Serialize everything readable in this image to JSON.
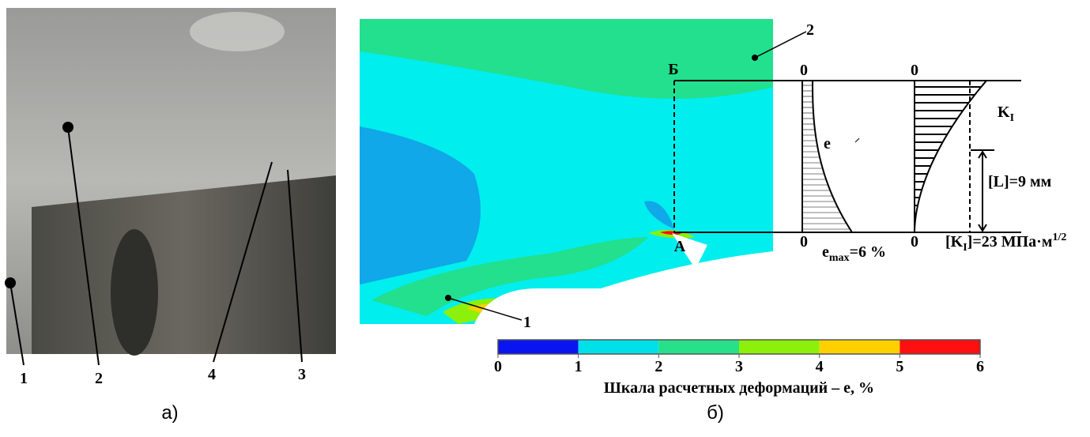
{
  "panel_a": {
    "labels": [
      "1",
      "2",
      "4",
      "3"
    ],
    "caption": "а)"
  },
  "panel_b": {
    "caption": "б)",
    "point_b": "Б",
    "point_a": "A",
    "zone_labels": [
      "2",
      "1"
    ],
    "diagram_e": {
      "top_zero": "0",
      "bottom_zero": "0",
      "curve": "e",
      "max_label": {
        "text": "e",
        "sub": "max",
        "rest": "=6 %"
      }
    },
    "diagram_k": {
      "top_zero": "0",
      "bottom_zero": "0",
      "curve": {
        "text": "K",
        "sub": "I"
      },
      "length_label": "[L]=9 мм",
      "crit_label": {
        "pre": "[K",
        "sub": "I",
        "mid": "]=23 МПа·м",
        "sup": "1/2"
      }
    }
  },
  "scale": {
    "ticks": [
      0,
      1,
      2,
      3,
      4,
      5,
      6
    ],
    "colors": [
      "#0a14f0",
      "#00e0e8",
      "#26e08a",
      "#8cf00a",
      "#ffd000",
      "#ff1010"
    ],
    "label": "Шкала расчетных деформаций – e, %"
  }
}
